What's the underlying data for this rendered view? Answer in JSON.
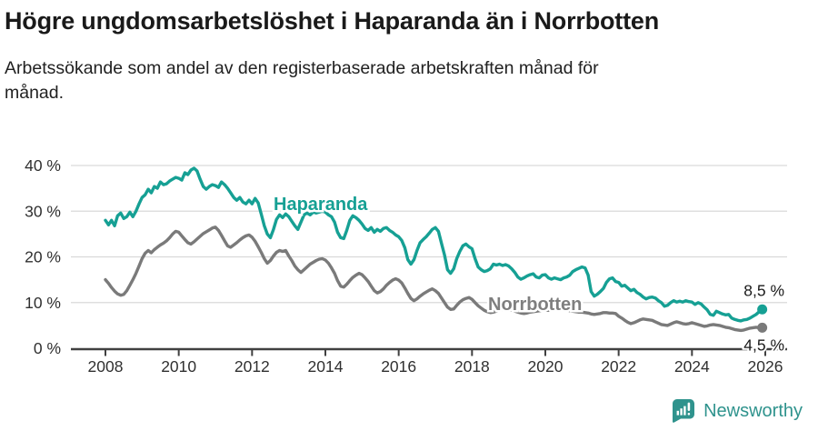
{
  "header": {
    "title": "Högre ungdomsarbetslöshet i Haparanda än i Norrbotten",
    "subtitle": "Arbetssökande som andel av den registerbaserade arbetskraften månad för månad."
  },
  "chart_data": {
    "type": "line",
    "title": "Högre ungdomsarbetslöshet i Haparanda än i Norrbotten",
    "subtitle": "Arbetssökande som andel av den registerbaserade arbetskraften månad för månad.",
    "unit": "percent",
    "x_frequency": "monthly",
    "x_start": "2008-01",
    "x_end": "2025-12",
    "xticks": [
      2008,
      2010,
      2012,
      2014,
      2016,
      2018,
      2020,
      2022,
      2024,
      2026
    ],
    "yticks": [
      0,
      10,
      20,
      30,
      40
    ],
    "ytick_suffix": " %",
    "ylim": [
      0,
      42
    ],
    "grid": "horizontal",
    "legend_position": "inline-labels",
    "series": [
      {
        "name": "Haparanda",
        "color": "#16a094",
        "end_label": "8,5 %",
        "end_value": 8.5,
        "values": [
          28.0,
          27.0,
          28.0,
          26.8,
          29.0,
          29.6,
          28.4,
          28.8,
          29.8,
          28.8,
          30.0,
          31.6,
          33.0,
          33.6,
          34.8,
          34.0,
          35.4,
          35.0,
          36.4,
          35.8,
          36.0,
          36.6,
          37.0,
          37.4,
          37.2,
          36.8,
          38.4,
          38.0,
          39.0,
          39.4,
          38.8,
          37.0,
          35.4,
          34.8,
          35.4,
          35.8,
          35.6,
          35.2,
          36.4,
          35.8,
          35.0,
          34.0,
          33.0,
          32.4,
          33.0,
          32.0,
          31.6,
          32.4,
          31.6,
          32.8,
          31.8,
          29.4,
          26.8,
          25.0,
          24.2,
          26.0,
          28.2,
          29.2,
          28.6,
          29.4,
          28.8,
          27.8,
          26.8,
          26.0,
          27.6,
          29.2,
          29.6,
          29.2,
          29.8,
          29.6,
          29.8,
          30.0,
          29.8,
          29.2,
          28.8,
          27.6,
          25.4,
          24.2,
          24.0,
          25.8,
          28.0,
          29.0,
          28.6,
          28.0,
          27.2,
          26.2,
          25.8,
          26.4,
          25.4,
          26.0,
          25.6,
          26.2,
          26.4,
          25.8,
          25.4,
          24.8,
          24.4,
          23.6,
          22.0,
          19.4,
          18.4,
          19.4,
          21.4,
          23.1,
          23.8,
          24.4,
          25.2,
          26.0,
          26.4,
          25.6,
          23.0,
          20.4,
          17.2,
          16.4,
          17.4,
          19.6,
          21.2,
          22.4,
          22.8,
          22.2,
          21.8,
          19.6,
          17.8,
          17.2,
          16.8,
          17.0,
          17.4,
          18.4,
          18.2,
          18.4,
          18.1,
          18.3,
          18.0,
          17.4,
          16.6,
          15.6,
          15.1,
          15.4,
          15.8,
          16.1,
          16.3,
          15.6,
          15.4,
          16.0,
          16.1,
          15.4,
          15.1,
          15.4,
          15.2,
          15.0,
          15.4,
          15.6,
          16.0,
          16.8,
          17.2,
          17.5,
          17.8,
          17.6,
          16.0,
          12.4,
          11.4,
          11.8,
          12.4,
          13.1,
          14.4,
          15.2,
          15.4,
          14.6,
          14.4,
          13.6,
          13.8,
          13.2,
          12.6,
          12.9,
          12.2,
          11.8,
          11.2,
          10.8,
          11.1,
          11.2,
          11.0,
          10.4,
          10.0,
          9.2,
          9.4,
          10.0,
          10.4,
          10.1,
          10.3,
          10.1,
          10.4,
          10.2,
          10.1,
          9.6,
          10.0,
          9.7,
          9.0,
          8.4,
          7.4,
          7.2,
          8.1,
          7.8,
          7.5,
          7.3,
          7.4,
          6.6,
          6.3,
          6.1,
          6.0,
          6.2,
          6.3,
          6.6,
          7.0,
          7.4,
          8.0,
          8.5
        ]
      },
      {
        "name": "Norrbotten",
        "color": "#7a7a7a",
        "end_label": "4,5 %",
        "end_value": 4.5,
        "values": [
          15.0,
          14.2,
          13.3,
          12.5,
          11.9,
          11.6,
          11.8,
          12.6,
          13.8,
          15.0,
          16.4,
          18.0,
          19.6,
          20.8,
          21.4,
          20.9,
          21.6,
          22.1,
          22.6,
          23.0,
          23.5,
          24.2,
          25.0,
          25.6,
          25.4,
          24.6,
          23.8,
          23.1,
          22.8,
          23.3,
          23.9,
          24.5,
          25.1,
          25.5,
          25.9,
          26.3,
          26.5,
          25.8,
          24.7,
          23.5,
          22.4,
          22.1,
          22.6,
          23.1,
          23.7,
          24.2,
          24.6,
          24.8,
          24.3,
          23.4,
          22.2,
          21.0,
          19.6,
          18.6,
          19.2,
          20.2,
          21.0,
          21.4,
          21.2,
          21.4,
          20.2,
          19.2,
          18.0,
          17.2,
          16.6,
          17.2,
          17.8,
          18.4,
          18.8,
          19.2,
          19.5,
          19.6,
          19.3,
          18.6,
          17.6,
          16.4,
          14.8,
          13.6,
          13.4,
          14.0,
          14.8,
          15.5,
          16.0,
          16.4,
          16.1,
          15.4,
          14.6,
          13.6,
          12.6,
          12.1,
          12.4,
          13.0,
          13.8,
          14.4,
          14.9,
          15.2,
          14.9,
          14.3,
          13.2,
          12.0,
          10.9,
          10.4,
          10.8,
          11.4,
          11.9,
          12.3,
          12.7,
          13.0,
          12.6,
          12.0,
          11.0,
          10.0,
          9.0,
          8.5,
          8.6,
          9.4,
          10.1,
          10.6,
          10.9,
          11.1,
          10.7,
          10.0,
          9.3,
          8.8,
          8.3,
          8.0,
          7.8,
          7.9,
          8.1,
          8.3,
          8.5,
          8.6,
          8.5,
          8.3,
          8.1,
          7.9,
          7.7,
          7.6,
          7.7,
          7.9,
          8.0,
          8.1,
          8.2,
          8.3,
          8.3,
          8.3,
          8.5,
          8.7,
          8.7,
          8.6,
          8.5,
          8.4,
          8.2,
          8.1,
          8.0,
          7.9,
          7.9,
          7.8,
          7.7,
          7.5,
          7.4,
          7.5,
          7.6,
          7.8,
          7.8,
          7.7,
          7.7,
          7.6,
          7.0,
          6.6,
          6.1,
          5.7,
          5.4,
          5.6,
          5.9,
          6.2,
          6.4,
          6.3,
          6.2,
          6.1,
          5.8,
          5.5,
          5.2,
          5.1,
          5.0,
          5.3,
          5.6,
          5.8,
          5.6,
          5.4,
          5.3,
          5.4,
          5.6,
          5.4,
          5.2,
          5.0,
          4.8,
          4.9,
          5.1,
          5.2,
          5.1,
          5.0,
          4.8,
          4.6,
          4.5,
          4.3,
          4.1,
          4.0,
          3.9,
          4.0,
          4.2,
          4.4,
          4.5,
          4.6,
          4.5,
          4.5
        ]
      }
    ]
  },
  "footer": {
    "brand": "Newsworthy",
    "brand_color": "#2f938d"
  }
}
